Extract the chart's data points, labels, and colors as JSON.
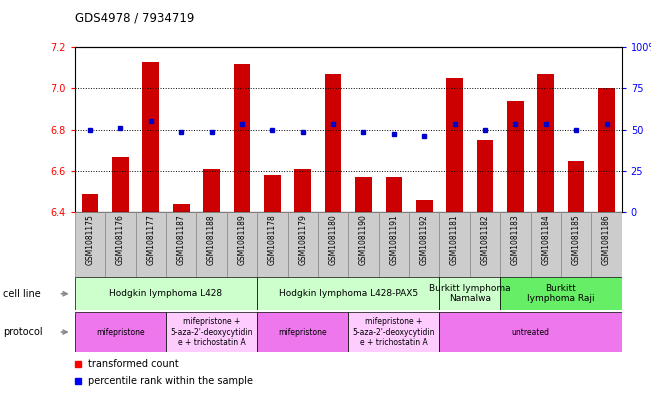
{
  "title": "GDS4978 / 7934719",
  "samples": [
    "GSM1081175",
    "GSM1081176",
    "GSM1081177",
    "GSM1081187",
    "GSM1081188",
    "GSM1081189",
    "GSM1081178",
    "GSM1081179",
    "GSM1081180",
    "GSM1081190",
    "GSM1081191",
    "GSM1081192",
    "GSM1081181",
    "GSM1081182",
    "GSM1081183",
    "GSM1081184",
    "GSM1081185",
    "GSM1081186"
  ],
  "bar_values": [
    6.49,
    6.67,
    7.13,
    6.44,
    6.61,
    7.12,
    6.58,
    6.61,
    7.07,
    6.57,
    6.57,
    6.46,
    7.05,
    6.75,
    6.94,
    7.07,
    6.65,
    7.0
  ],
  "dot_values": [
    6.8,
    6.81,
    6.84,
    6.79,
    6.79,
    6.83,
    6.8,
    6.79,
    6.83,
    6.79,
    6.78,
    6.77,
    6.83,
    6.8,
    6.83,
    6.83,
    6.8,
    6.83
  ],
  "ylim": [
    6.4,
    7.2
  ],
  "yticks": [
    6.4,
    6.6,
    6.8,
    7.0,
    7.2
  ],
  "right_yticks": [
    0,
    25,
    50,
    75,
    100
  ],
  "right_ylim": [
    0,
    100
  ],
  "bar_color": "#cc0000",
  "dot_color": "#0000cc",
  "cell_line_groups": [
    {
      "label": "Hodgkin lymphoma L428",
      "start": 0,
      "end": 5,
      "color": "#ccffcc"
    },
    {
      "label": "Hodgkin lymphoma L428-PAX5",
      "start": 6,
      "end": 11,
      "color": "#ccffcc"
    },
    {
      "label": "Burkitt lymphoma\nNamalwa",
      "start": 12,
      "end": 13,
      "color": "#ccffcc"
    },
    {
      "label": "Burkitt\nlymphoma Raji",
      "start": 14,
      "end": 17,
      "color": "#66ee66"
    }
  ],
  "protocol_groups": [
    {
      "label": "mifepristone",
      "start": 0,
      "end": 2,
      "color": "#ee77ee"
    },
    {
      "label": "mifepristone +\n5-aza-2'-deoxycytidin\ne + trichostatin A",
      "start": 3,
      "end": 5,
      "color": "#ffccff"
    },
    {
      "label": "mifepristone",
      "start": 6,
      "end": 8,
      "color": "#ee77ee"
    },
    {
      "label": "mifepristone +\n5-aza-2'-deoxycytidin\ne + trichostatin A",
      "start": 9,
      "end": 11,
      "color": "#ffccff"
    },
    {
      "label": "untreated",
      "start": 12,
      "end": 17,
      "color": "#ee77ee"
    }
  ],
  "legend_transformed": "transformed count",
  "legend_percentile": "percentile rank within the sample",
  "cell_line_label": "cell line",
  "protocol_label": "protocol",
  "bar_width": 0.55,
  "sample_bg_color": "#cccccc",
  "sample_border_color": "#999999"
}
